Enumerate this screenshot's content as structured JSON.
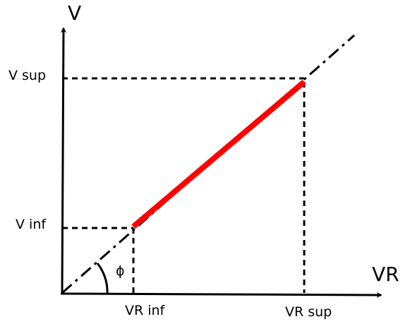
{
  "axes": {
    "y_label": "V",
    "x_label": "VR"
  },
  "levels": {
    "v_sup": "V sup",
    "v_inf": "V inf",
    "vr_inf": "VR inf",
    "vr_sup": "VR sup"
  },
  "angle": {
    "label": "ϕ"
  }
}
